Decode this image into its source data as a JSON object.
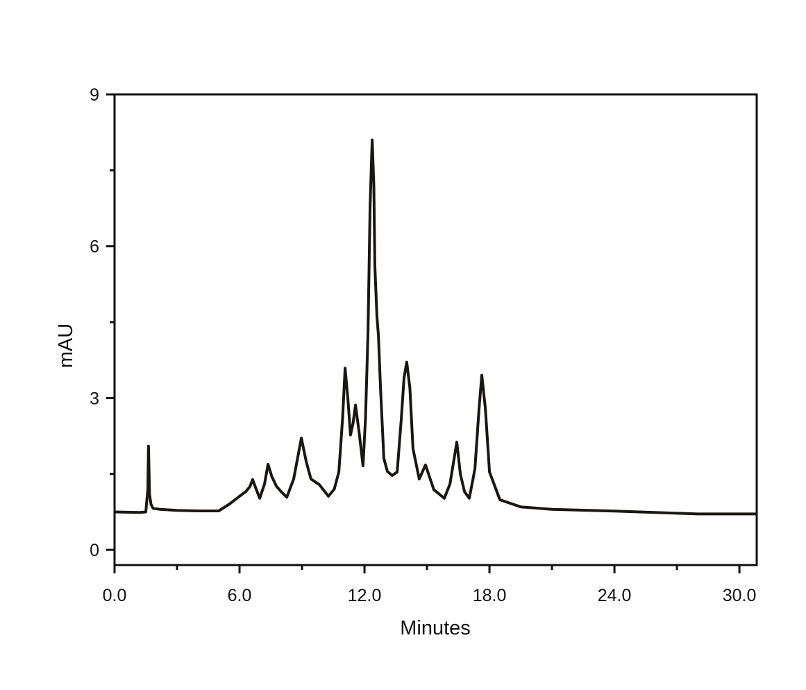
{
  "chart_data": {
    "type": "line",
    "title": "",
    "xlabel": "Minutes",
    "ylabel": "mAU",
    "xlim": [
      0,
      30.83
    ],
    "ylim": [
      -0.3,
      9
    ],
    "x_ticks": [
      0,
      6,
      12,
      18,
      24,
      30
    ],
    "x_tick_labels": [
      "0.0",
      "6.0",
      "12.0",
      "18.0",
      "24.0",
      "30.0"
    ],
    "x_minor_ticks": [
      3,
      9,
      15,
      21,
      27
    ],
    "y_ticks": [
      0,
      3,
      6,
      9
    ],
    "y_tick_labels": [
      "0",
      "3",
      "6",
      "9"
    ],
    "y_minor_ticks": [
      1.5,
      4.5,
      7.5
    ],
    "grid": false,
    "line_color": "#1a1614",
    "series": [
      {
        "x": [
          0,
          1.2,
          1.5,
          1.6,
          1.63,
          1.68,
          1.75,
          1.85,
          2.2,
          3.0,
          4.0,
          5.0,
          5.5,
          6.0,
          6.3,
          6.5,
          6.63,
          6.8,
          6.97,
          7.2,
          7.37,
          7.55,
          7.77,
          8.0,
          8.27,
          8.6,
          8.97,
          9.2,
          9.43,
          9.83,
          10.27,
          10.55,
          10.77,
          10.95,
          11.07,
          11.2,
          11.33,
          11.45,
          11.57,
          11.75,
          11.93,
          12.05,
          12.17,
          12.27,
          12.37,
          12.45,
          12.5,
          12.6,
          12.67,
          12.77,
          12.93,
          13.1,
          13.33,
          13.57,
          13.77,
          13.9,
          14.03,
          14.18,
          14.33,
          14.63,
          14.93,
          15.33,
          15.83,
          16.1,
          16.3,
          16.43,
          16.6,
          16.8,
          17.03,
          17.3,
          17.5,
          17.63,
          17.8,
          18.0,
          18.5,
          19.5,
          21.0,
          24.5,
          28.0,
          30.83
        ],
        "y": [
          0.75,
          0.74,
          0.75,
          1.2,
          2.05,
          1.1,
          0.9,
          0.82,
          0.8,
          0.78,
          0.77,
          0.77,
          0.9,
          1.06,
          1.15,
          1.25,
          1.39,
          1.2,
          1.02,
          1.3,
          1.69,
          1.45,
          1.26,
          1.15,
          1.04,
          1.4,
          2.21,
          1.75,
          1.4,
          1.29,
          1.06,
          1.2,
          1.54,
          2.6,
          3.59,
          3.0,
          2.27,
          2.5,
          2.86,
          2.3,
          1.66,
          2.6,
          4.3,
          6.8,
          8.1,
          7.2,
          5.6,
          4.6,
          4.24,
          3.2,
          1.81,
          1.55,
          1.47,
          1.54,
          2.6,
          3.4,
          3.71,
          3.2,
          2.0,
          1.4,
          1.68,
          1.19,
          1.02,
          1.3,
          1.8,
          2.13,
          1.5,
          1.15,
          1.02,
          1.6,
          2.8,
          3.45,
          2.8,
          1.54,
          0.99,
          0.85,
          0.8,
          0.76,
          0.71,
          0.71
        ]
      }
    ]
  }
}
